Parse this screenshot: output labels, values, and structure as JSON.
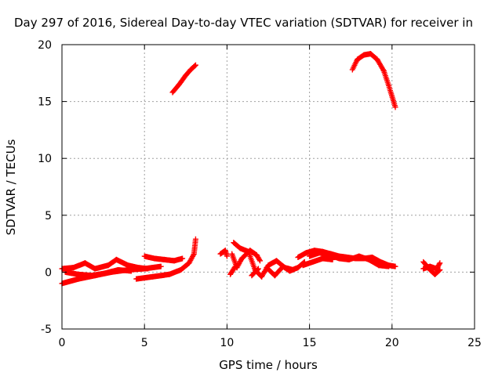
{
  "chart_data": {
    "type": "scatter",
    "title": "Day 297 of 2016, Sidereal Day-to-day VTEC variation (SDTVAR) for receiver in",
    "xlabel": "GPS time / hours",
    "ylabel": "SDTVAR / TECUs",
    "xlim": [
      0,
      25
    ],
    "ylim": [
      -5,
      20
    ],
    "xticks": [
      0,
      5,
      10,
      15,
      20,
      25
    ],
    "yticks": [
      -5,
      0,
      5,
      10,
      15,
      20
    ],
    "grid": true,
    "legend": "none",
    "marker": "+",
    "colors": {
      "series": "#ff0000",
      "grid": "#a0a0a0",
      "axis": "#000000"
    },
    "series": [
      {
        "points": [
          [
            6.7,
            15.8
          ],
          [
            7.1,
            16.5
          ],
          [
            7.5,
            17.3
          ],
          [
            7.8,
            17.8
          ],
          [
            8.1,
            18.2
          ]
        ]
      },
      {
        "points": [
          [
            17.6,
            17.8
          ],
          [
            17.9,
            18.7
          ],
          [
            18.3,
            19.1
          ],
          [
            18.7,
            19.2
          ],
          [
            19.1,
            18.7
          ],
          [
            19.5,
            17.7
          ],
          [
            19.8,
            16.4
          ],
          [
            20.2,
            14.5
          ]
        ]
      },
      {
        "points": [
          [
            0.0,
            -1.0
          ],
          [
            1.0,
            -0.6
          ],
          [
            2.0,
            -0.3
          ],
          [
            3.0,
            0.0
          ],
          [
            4.0,
            0.2
          ],
          [
            5.0,
            0.3
          ],
          [
            6.0,
            0.5
          ]
        ]
      },
      {
        "points": [
          [
            0.0,
            0.3
          ],
          [
            0.7,
            0.4
          ],
          [
            1.4,
            0.8
          ],
          [
            2.0,
            0.3
          ],
          [
            2.8,
            0.6
          ],
          [
            3.3,
            1.1
          ],
          [
            4.0,
            0.6
          ],
          [
            4.6,
            0.4
          ],
          [
            5.2,
            0.3
          ]
        ]
      },
      {
        "points": [
          [
            0.2,
            0.0
          ],
          [
            1.0,
            -0.2
          ],
          [
            1.8,
            -0.3
          ],
          [
            2.6,
            -0.1
          ],
          [
            3.4,
            0.2
          ],
          [
            4.2,
            0.1
          ]
        ]
      },
      {
        "points": [
          [
            4.5,
            -0.6
          ],
          [
            5.5,
            -0.4
          ],
          [
            6.5,
            -0.2
          ],
          [
            7.2,
            0.2
          ],
          [
            7.7,
            0.8
          ],
          [
            8.0,
            1.6
          ],
          [
            8.1,
            2.9
          ]
        ]
      },
      {
        "points": [
          [
            5.0,
            1.4
          ],
          [
            5.6,
            1.2
          ],
          [
            6.2,
            1.1
          ],
          [
            6.8,
            1.0
          ],
          [
            7.3,
            1.2
          ]
        ]
      },
      {
        "points": [
          [
            9.6,
            1.6
          ],
          [
            9.9,
            1.9
          ],
          [
            10.0,
            1.4
          ]
        ]
      },
      {
        "points": [
          [
            10.3,
            1.6
          ],
          [
            10.6,
            0.4
          ],
          [
            10.9,
            1.2
          ],
          [
            11.4,
            1.9
          ],
          [
            11.8,
            1.5
          ],
          [
            12.0,
            1.0
          ]
        ]
      },
      {
        "points": [
          [
            10.4,
            2.6
          ],
          [
            10.8,
            2.1
          ],
          [
            11.3,
            1.8
          ],
          [
            11.7,
            0.2
          ],
          [
            12.1,
            -0.4
          ],
          [
            12.5,
            0.6
          ],
          [
            13.0,
            1.0
          ],
          [
            13.5,
            0.4
          ],
          [
            14.0,
            0.2
          ]
        ]
      },
      {
        "points": [
          [
            10.2,
            -0.2
          ],
          [
            10.5,
            0.5
          ]
        ]
      },
      {
        "points": [
          [
            11.5,
            -0.3
          ],
          [
            11.9,
            0.3
          ]
        ]
      },
      {
        "points": [
          [
            12.4,
            0.4
          ],
          [
            12.9,
            -0.3
          ],
          [
            13.4,
            0.5
          ],
          [
            13.8,
            0.1
          ],
          [
            14.3,
            0.4
          ],
          [
            14.7,
            0.9
          ]
        ]
      },
      {
        "points": [
          [
            14.3,
            1.3
          ],
          [
            14.8,
            1.7
          ],
          [
            15.3,
            1.9
          ],
          [
            15.8,
            1.8
          ],
          [
            16.3,
            1.6
          ],
          [
            16.8,
            1.4
          ],
          [
            17.3,
            1.3
          ],
          [
            17.8,
            1.2
          ],
          [
            18.3,
            1.2
          ],
          [
            18.8,
            1.3
          ],
          [
            19.3,
            0.9
          ],
          [
            19.8,
            0.6
          ],
          [
            20.2,
            0.5
          ]
        ]
      },
      {
        "points": [
          [
            15.0,
            1.4
          ],
          [
            15.6,
            1.7
          ],
          [
            16.2,
            1.5
          ],
          [
            16.8,
            1.2
          ],
          [
            17.4,
            1.1
          ],
          [
            18.0,
            1.4
          ],
          [
            18.6,
            1.1
          ],
          [
            19.2,
            0.6
          ],
          [
            19.8,
            0.5
          ]
        ]
      },
      {
        "points": [
          [
            14.6,
            0.6
          ],
          [
            15.2,
            0.9
          ],
          [
            15.8,
            1.2
          ],
          [
            16.4,
            1.1
          ]
        ]
      },
      {
        "points": [
          [
            21.9,
            0.3
          ],
          [
            22.3,
            0.5
          ],
          [
            22.7,
            0.3
          ],
          [
            22.9,
            0.8
          ]
        ]
      },
      {
        "points": [
          [
            21.9,
            0.9
          ],
          [
            22.3,
            0.2
          ],
          [
            22.6,
            -0.2
          ],
          [
            22.9,
            0.2
          ]
        ]
      }
    ]
  }
}
